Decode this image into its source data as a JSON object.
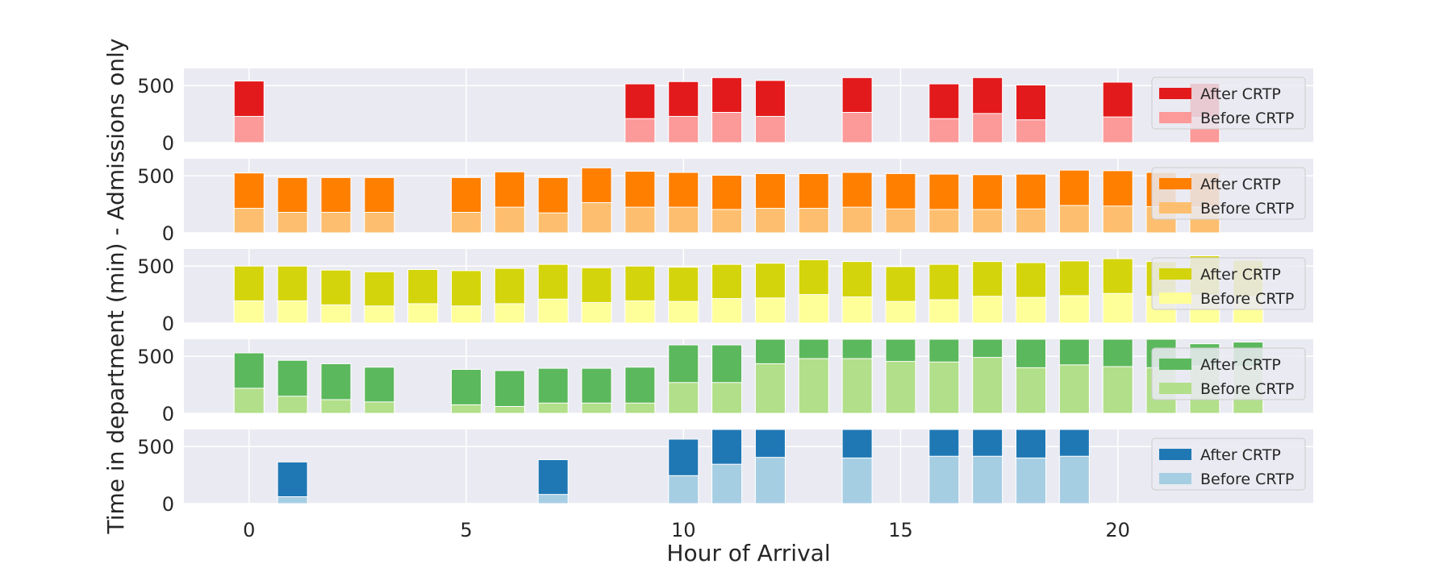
{
  "chart_data": {
    "type": "bar",
    "xlabel": "Hour of Arrival",
    "ylabel": "Time in department (min) - Admissions only",
    "xlim": [
      -1.5,
      24.5
    ],
    "x_ticks": [
      0,
      5,
      10,
      15,
      20
    ],
    "y_ticks": [
      0,
      500
    ],
    "grid": true,
    "legend_position": "right",
    "hours": [
      0,
      1,
      2,
      3,
      4,
      5,
      6,
      7,
      8,
      9,
      10,
      11,
      12,
      13,
      14,
      15,
      16,
      17,
      18,
      19,
      20,
      21,
      22,
      23
    ],
    "panels": [
      {
        "ylim": [
          0,
          650
        ],
        "legend": [
          "After CRTP",
          "Before CRTP"
        ],
        "colors": {
          "after": "#e31a1c",
          "before": "#fb9a99"
        },
        "before": [
          230,
          null,
          null,
          null,
          null,
          null,
          null,
          null,
          null,
          210,
          230,
          265,
          230,
          null,
          265,
          null,
          210,
          255,
          200,
          null,
          225,
          null,
          220,
          null
        ],
        "after": [
          540,
          null,
          null,
          null,
          null,
          null,
          null,
          null,
          null,
          515,
          535,
          570,
          545,
          null,
          570,
          null,
          515,
          570,
          505,
          null,
          530,
          null,
          520,
          null
        ]
      },
      {
        "ylim": [
          0,
          650
        ],
        "legend": [
          "After CRTP",
          "Before CRTP"
        ],
        "colors": {
          "after": "#ff7f00",
          "before": "#fdbf6f"
        },
        "before": [
          215,
          180,
          180,
          180,
          null,
          180,
          225,
          175,
          265,
          225,
          225,
          205,
          215,
          215,
          225,
          210,
          205,
          205,
          210,
          240,
          235,
          230,
          225,
          null
        ],
        "after": [
          525,
          485,
          485,
          485,
          null,
          485,
          535,
          485,
          570,
          540,
          530,
          505,
          520,
          520,
          530,
          520,
          515,
          510,
          515,
          550,
          545,
          530,
          525,
          null
        ]
      },
      {
        "ylim": [
          0,
          650
        ],
        "legend": [
          "After CRTP",
          "Before CRTP"
        ],
        "colors": {
          "after": "#d4d40c",
          "before": "#ffff99"
        },
        "before": [
          195,
          195,
          160,
          150,
          170,
          150,
          170,
          210,
          180,
          195,
          190,
          215,
          220,
          250,
          230,
          190,
          205,
          235,
          225,
          240,
          260,
          235,
          245,
          235
        ],
        "after": [
          500,
          500,
          465,
          450,
          470,
          460,
          480,
          515,
          485,
          500,
          490,
          515,
          525,
          555,
          540,
          495,
          515,
          540,
          530,
          545,
          565,
          540,
          590,
          550
        ]
      },
      {
        "ylim": [
          0,
          650
        ],
        "legend": [
          "After CRTP",
          "Before CRTP"
        ],
        "colors": {
          "after": "#5cb85c",
          "before": "#b2df8a"
        },
        "before": [
          220,
          150,
          120,
          100,
          null,
          75,
          60,
          90,
          90,
          90,
          270,
          270,
          435,
          480,
          480,
          455,
          450,
          490,
          400,
          425,
          410,
          400,
          415,
          410
        ],
        "after": [
          530,
          465,
          435,
          405,
          null,
          385,
          375,
          395,
          395,
          405,
          600,
          600,
          650,
          650,
          650,
          650,
          650,
          650,
          650,
          650,
          650,
          650,
          610,
          625
        ]
      },
      {
        "ylim": [
          0,
          650
        ],
        "legend": [
          "After CRTP",
          "Before CRTP"
        ],
        "colors": {
          "after": "#1f78b4",
          "before": "#a6cee3"
        },
        "before": [
          null,
          60,
          null,
          null,
          null,
          null,
          null,
          80,
          null,
          null,
          245,
          345,
          405,
          null,
          400,
          null,
          415,
          415,
          400,
          415,
          null,
          null,
          null,
          null
        ],
        "after": [
          null,
          365,
          null,
          null,
          null,
          null,
          null,
          385,
          null,
          null,
          565,
          650,
          650,
          null,
          650,
          null,
          650,
          650,
          650,
          650,
          null,
          null,
          null,
          null
        ]
      }
    ]
  }
}
